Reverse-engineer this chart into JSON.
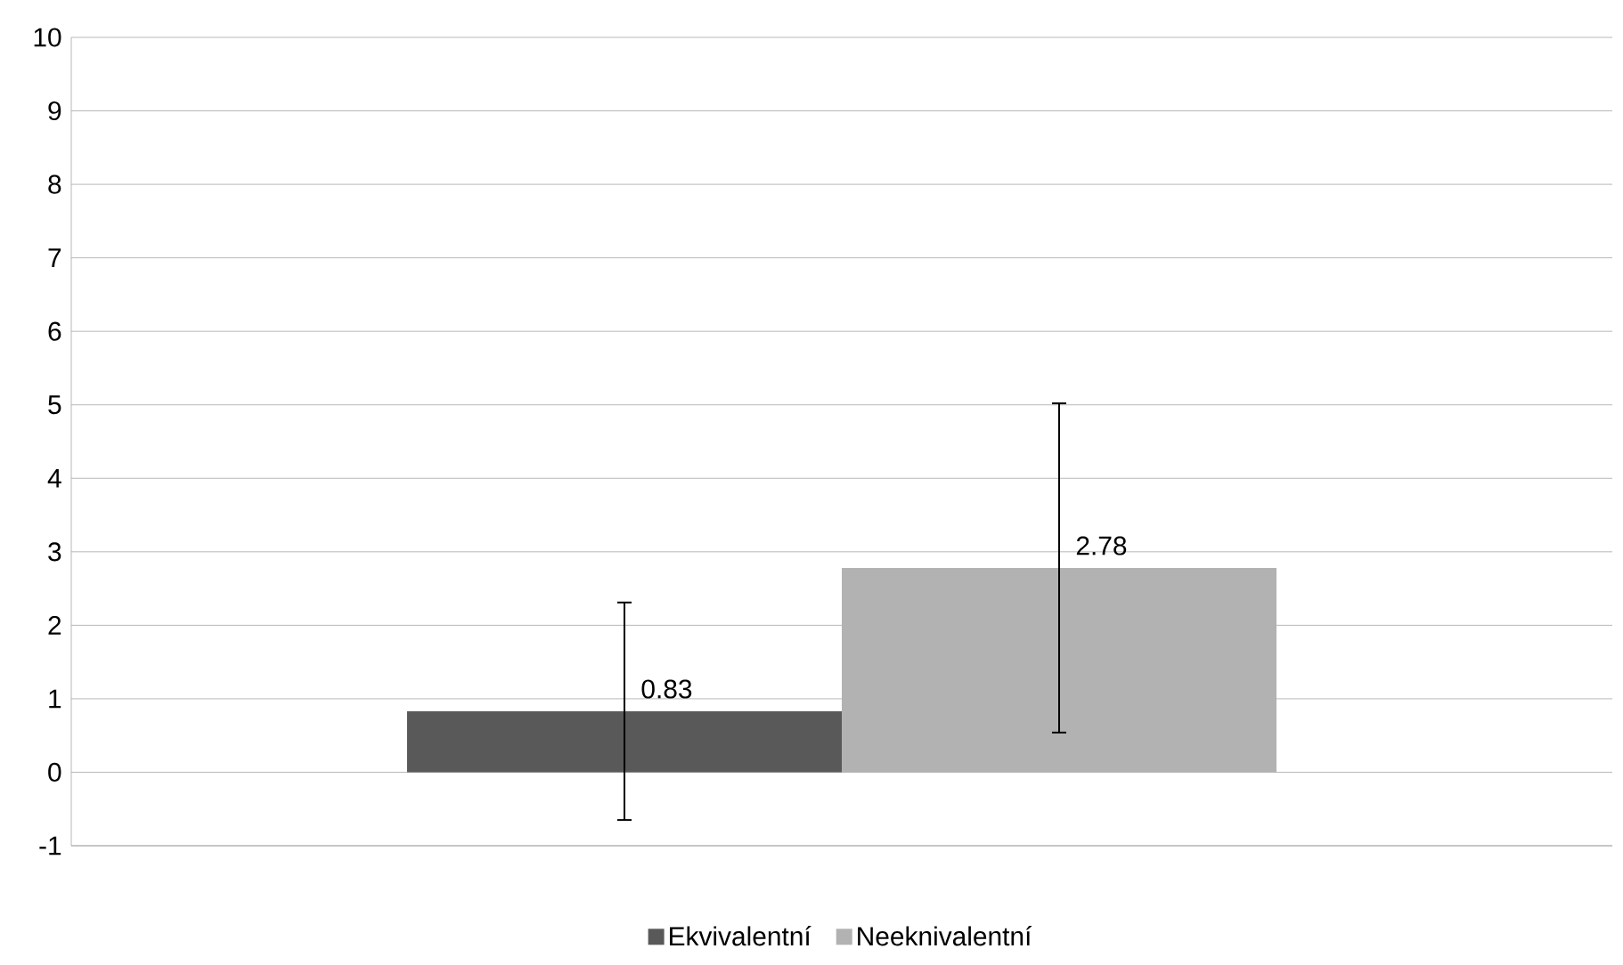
{
  "chart_data": {
    "type": "bar",
    "categories": [
      null
    ],
    "series": [
      {
        "name": "Ekvivalentní",
        "color": "#595959",
        "values": [
          0.83
        ],
        "errors": [
          1.48
        ]
      },
      {
        "name": "Neeknivalentní",
        "color": "#b2b2b2",
        "values": [
          2.78
        ],
        "errors": [
          2.24
        ]
      }
    ],
    "ylim": [
      -1,
      10
    ],
    "yticks": [
      -1,
      0,
      1,
      2,
      3,
      4,
      5,
      6,
      7,
      8,
      9,
      10
    ],
    "grid": "y",
    "legend": "bottom",
    "data_labels": true,
    "tick_labels": "y"
  }
}
